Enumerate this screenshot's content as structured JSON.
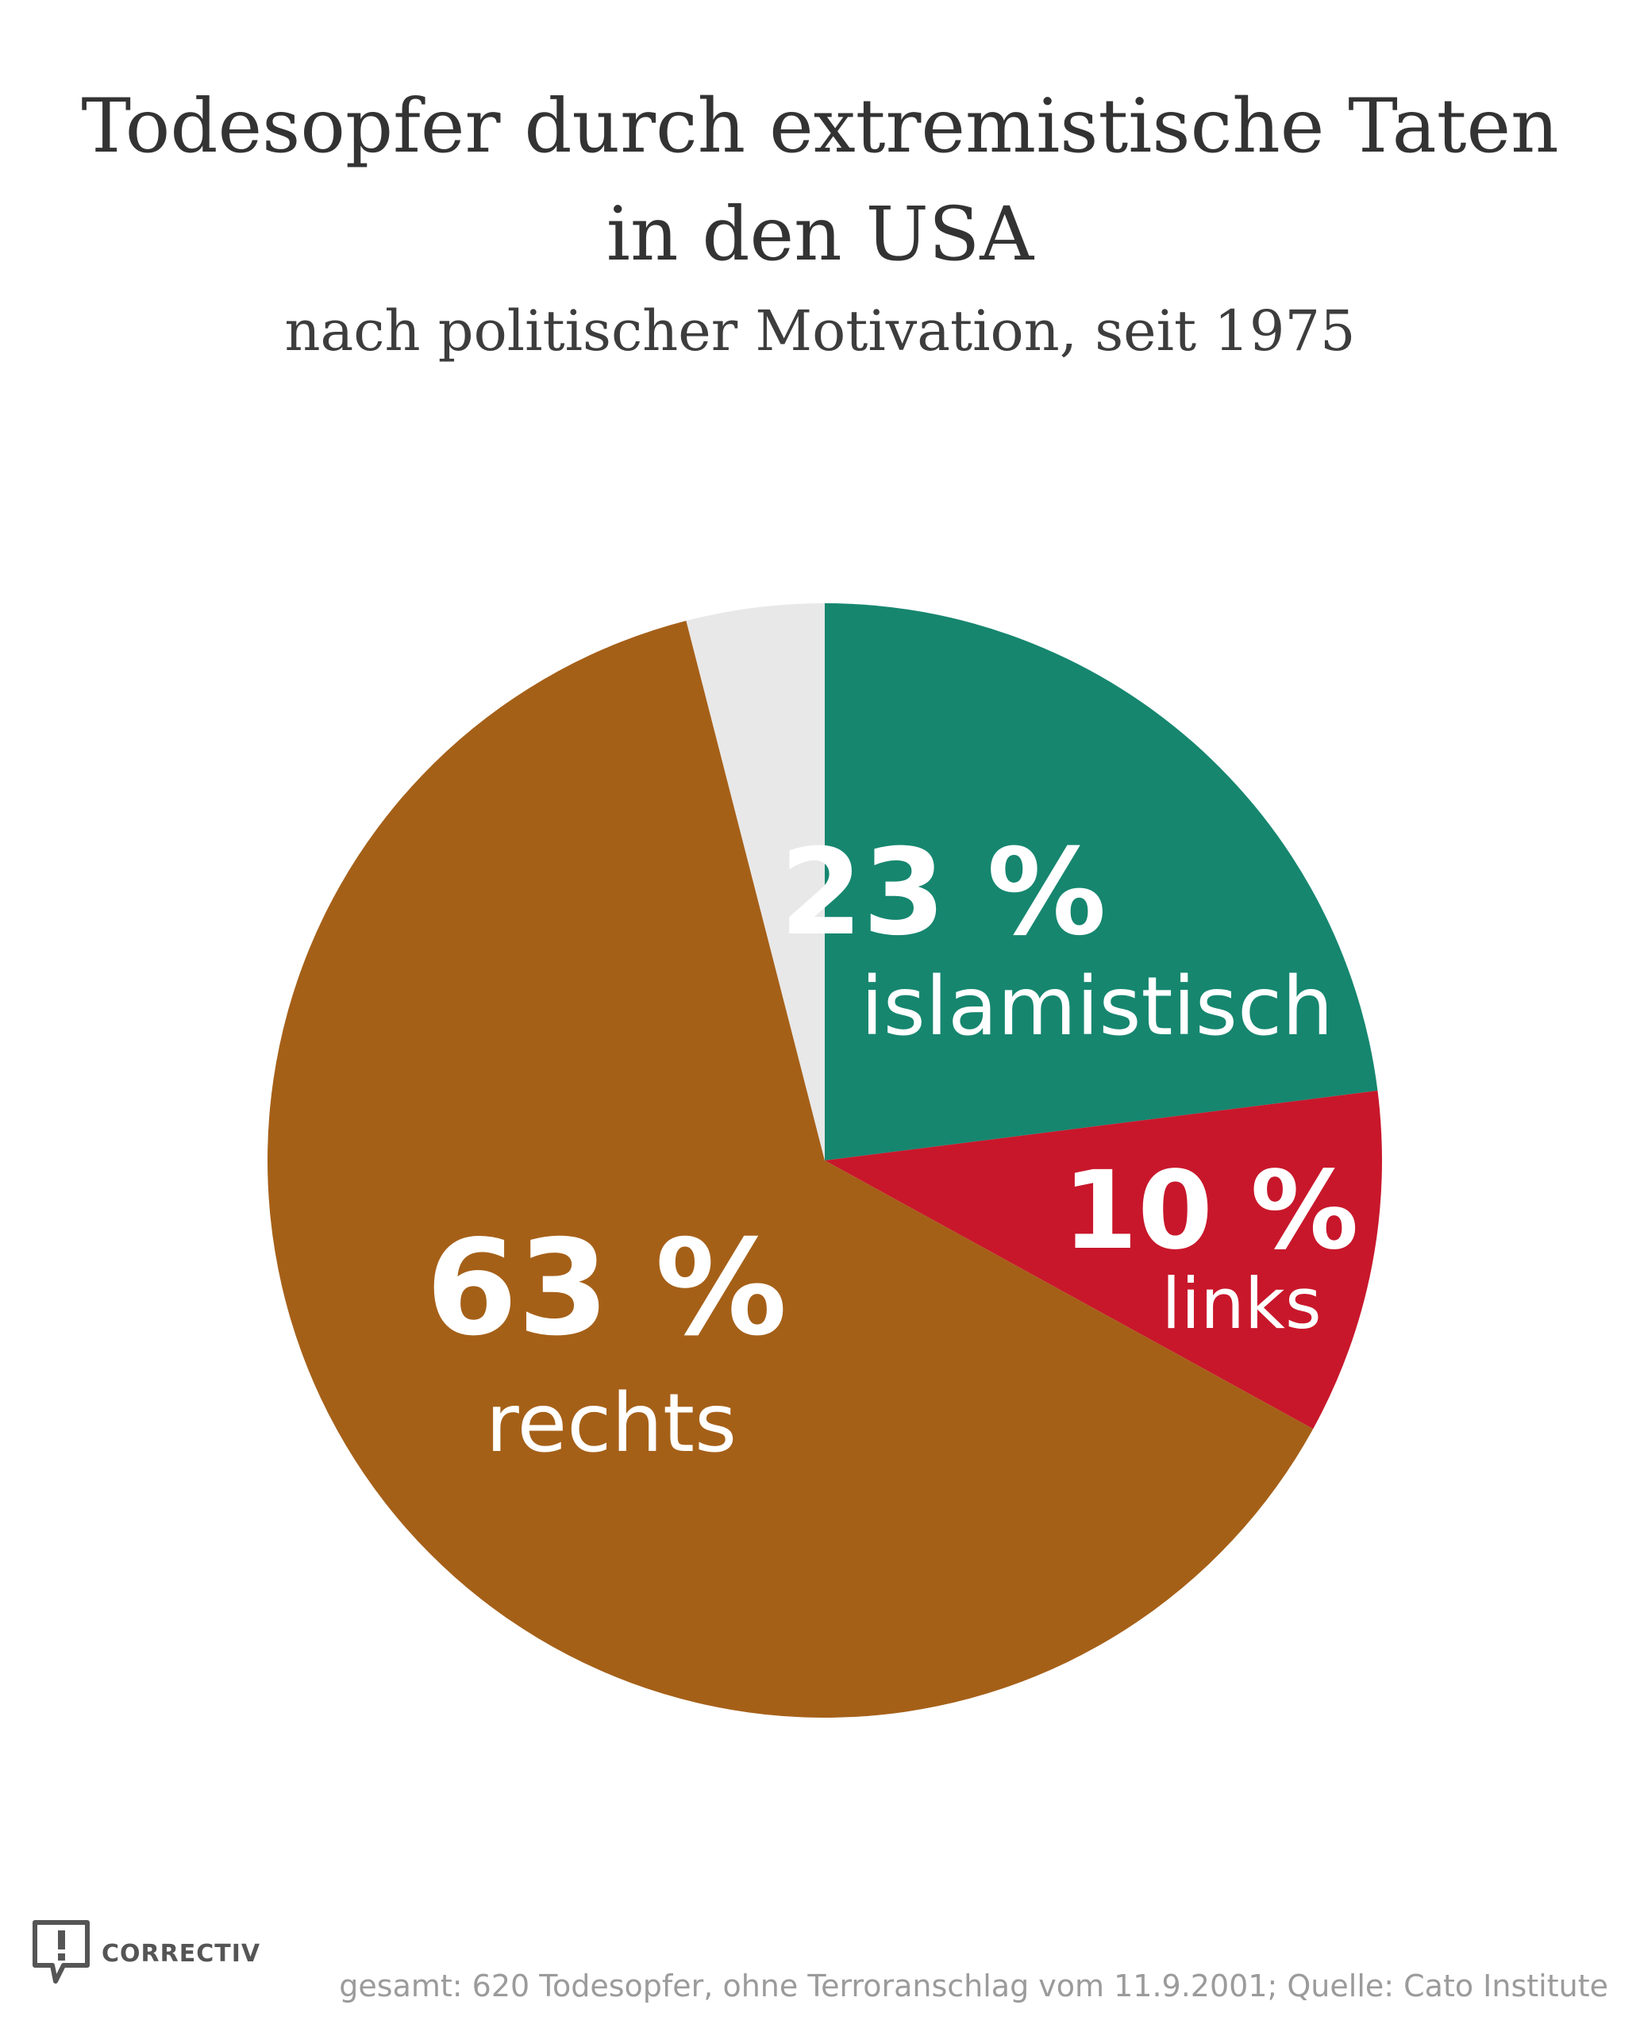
{
  "chart_data": {
    "type": "pie",
    "title_lines": [
      "Todesopfer durch extremistische Taten",
      "in den USA"
    ],
    "subtitle": "nach politischer Motivation, seit 1975",
    "slices": [
      {
        "pct_label": "23 %",
        "name": "islamistisch",
        "value": 23,
        "color": "#16866f"
      },
      {
        "pct_label": "10 %",
        "name": "links",
        "value": 10,
        "color": "#c8172b"
      },
      {
        "pct_label": "63 %",
        "name": "rechts",
        "value": 63,
        "color": "#a56018"
      },
      {
        "pct_label": "",
        "name": "",
        "value": 4,
        "color": "#e8e8e8"
      }
    ]
  },
  "brand": {
    "logo_text": "CORRECTIV",
    "logo_icon": "speech-bubble-exclamation-icon"
  },
  "footer": "gesamt: 620 Todesopfer, ohne Terroranschlag vom 11.9.2001; Quelle: Cato Institute"
}
